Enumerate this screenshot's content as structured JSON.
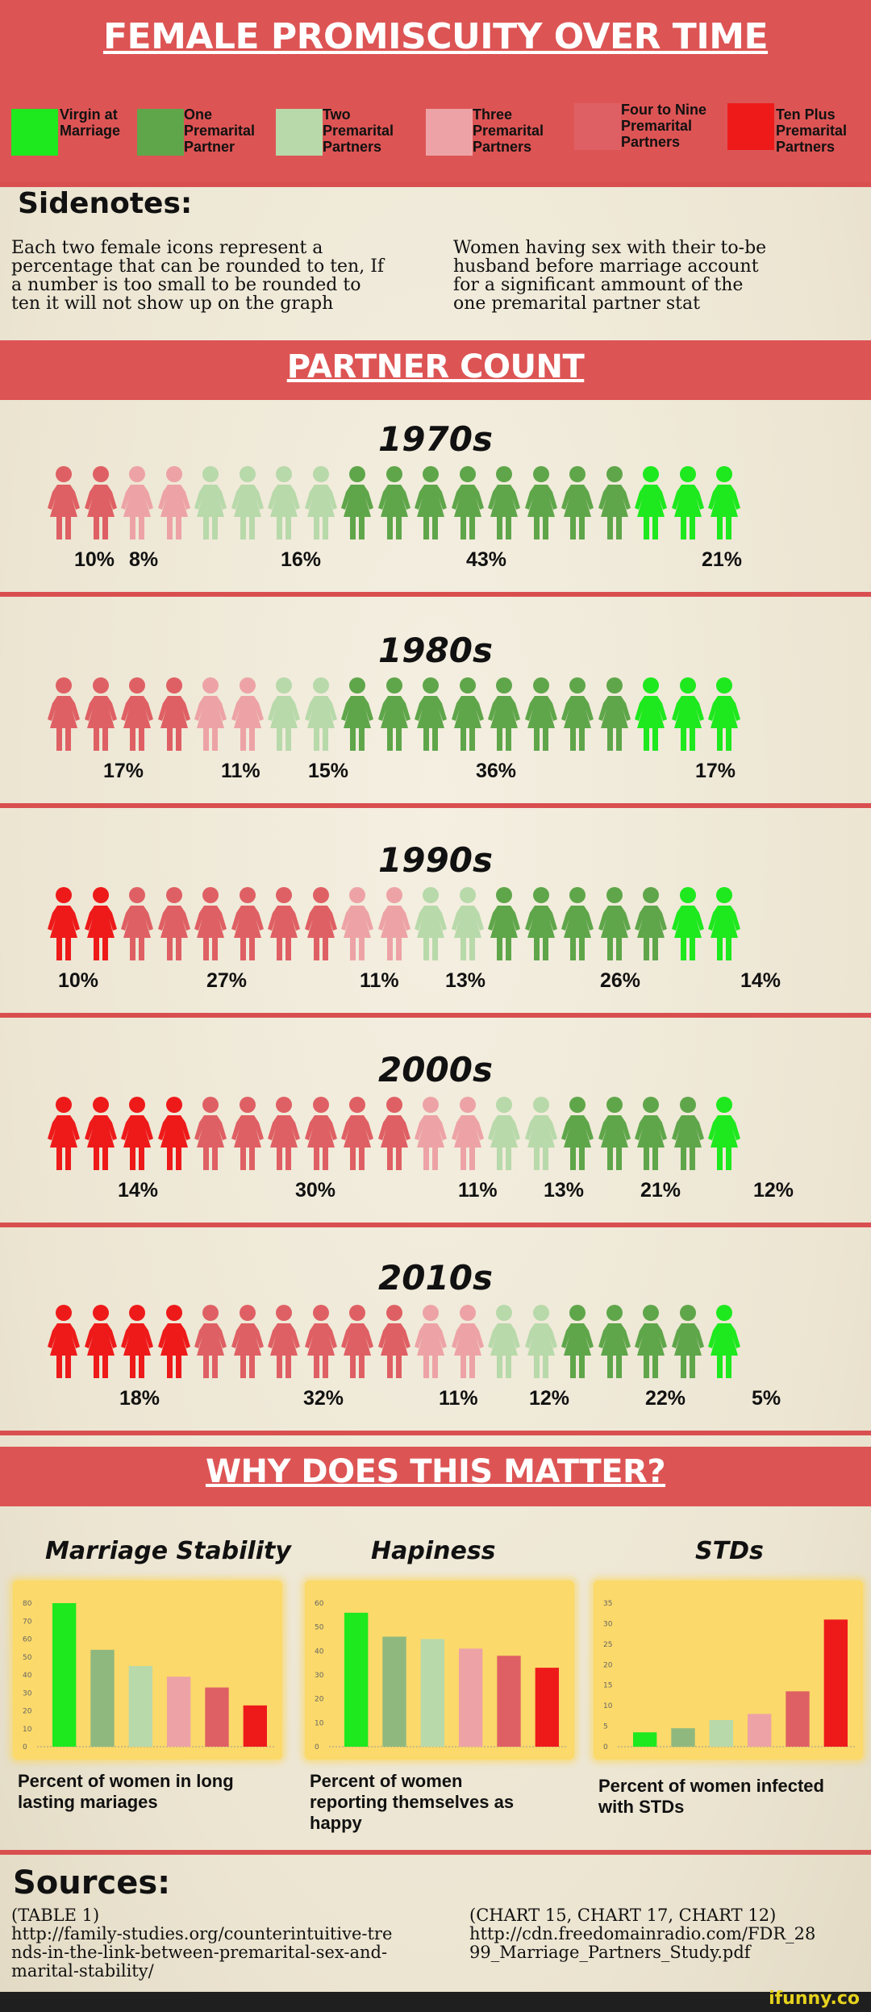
{
  "title": "FEMALE PROMISCUITY OVER TIME",
  "legend": [
    {
      "label": "Virgin at\nMarriage",
      "color": "#1ee81e"
    },
    {
      "label": "One\nPremarital\nPartner",
      "color": "#5fa64a"
    },
    {
      "label": "Two\nPremarital\nPartners",
      "color": "#b8d9aa"
    },
    {
      "label": "Three\nPremarital\nPartners",
      "color": "#eda3a6"
    },
    {
      "label": "Four to Nine\nPremarital\nPartners",
      "color": "#df6064"
    },
    {
      "label": "Ten Plus\nPremarital\nPartners",
      "color": "#ee1a1a"
    }
  ],
  "sidenotes": {
    "heading": "Sidenotes:",
    "left": "Each two female icons represent a\npercentage that can be rounded to ten, If\na number is too small to be rounded to\nten it will not show up on the graph",
    "right": "Women having sex with their to-be\nhusband before marriage account\nfor a significant ammount of the\none premarital partner stat"
  },
  "partner_count_title": "PARTNER COUNT",
  "decades": [
    {
      "label": "1970s",
      "icons": "4433222211111111000",
      "pcts": [
        "10%",
        "8%",
        "16%",
        "43%",
        "21%"
      ]
    },
    {
      "label": "1980s",
      "icons": "4444332211111111000",
      "pcts": [
        "17%",
        "11%",
        "15%",
        "36%",
        "17%"
      ]
    },
    {
      "label": "1990s",
      "icons": "5544444433221111100",
      "pcts": [
        "10%",
        "27%",
        "11%",
        "13%",
        "26%",
        "14%"
      ]
    },
    {
      "label": "2000s",
      "icons": "5555444444332211110",
      "pcts": [
        "14%",
        "30%",
        "11%",
        "13%",
        "21%",
        "12%"
      ]
    },
    {
      "label": "2010s",
      "icons": "5555444444332211110",
      "pcts": [
        "18%",
        "32%",
        "11%",
        "12%",
        "22%",
        "5%"
      ]
    }
  ],
  "why_title": "WHY DOES THIS MATTER?",
  "chart_data": [
    {
      "type": "bar",
      "title": "Marriage Stability",
      "caption": "Percent of women in long\nlasting mariages",
      "yticks": [
        0,
        10,
        20,
        30,
        40,
        50,
        60,
        70,
        80
      ],
      "ylim": [
        0,
        80
      ],
      "values": [
        80,
        54,
        45,
        39,
        33,
        23
      ],
      "colors": [
        "#1ee81e",
        "#8fb87f",
        "#b8d9aa",
        "#eda3a6",
        "#df6064",
        "#ee1a1a"
      ]
    },
    {
      "type": "bar",
      "title": "Hapiness",
      "caption": "Percent of women\nreporting themselves as\nhappy",
      "yticks": [
        0,
        10,
        20,
        30,
        40,
        50,
        60
      ],
      "ylim": [
        0,
        60
      ],
      "values": [
        56,
        46,
        45,
        41,
        38,
        33
      ],
      "colors": [
        "#1ee81e",
        "#8fb87f",
        "#b8d9aa",
        "#eda3a6",
        "#df6064",
        "#ee1a1a"
      ]
    },
    {
      "type": "bar",
      "title": "STDs",
      "caption": "Percent of women infected\nwith STDs",
      "yticks": [
        0,
        5,
        10,
        15,
        20,
        25,
        30,
        35
      ],
      "ylim": [
        0,
        35
      ],
      "values": [
        3.5,
        4.5,
        6.5,
        8,
        13.5,
        31
      ],
      "colors": [
        "#1ee81e",
        "#8fb87f",
        "#b8d9aa",
        "#eda3a6",
        "#df6064",
        "#ee1a1a"
      ]
    }
  ],
  "sources": {
    "heading": "Sources:",
    "left": "(TABLE 1)\nhttp://family-studies.org/counterintuitive-tre\nnds-in-the-link-between-premarital-sex-and-\nmarital-stability/",
    "right": "(CHART 15, CHART 17, CHART 12)\nhttp://cdn.freedomainradio.com/FDR_28\n99_Marriage_Partners_Study.pdf"
  },
  "watermark": "ifunny.co"
}
